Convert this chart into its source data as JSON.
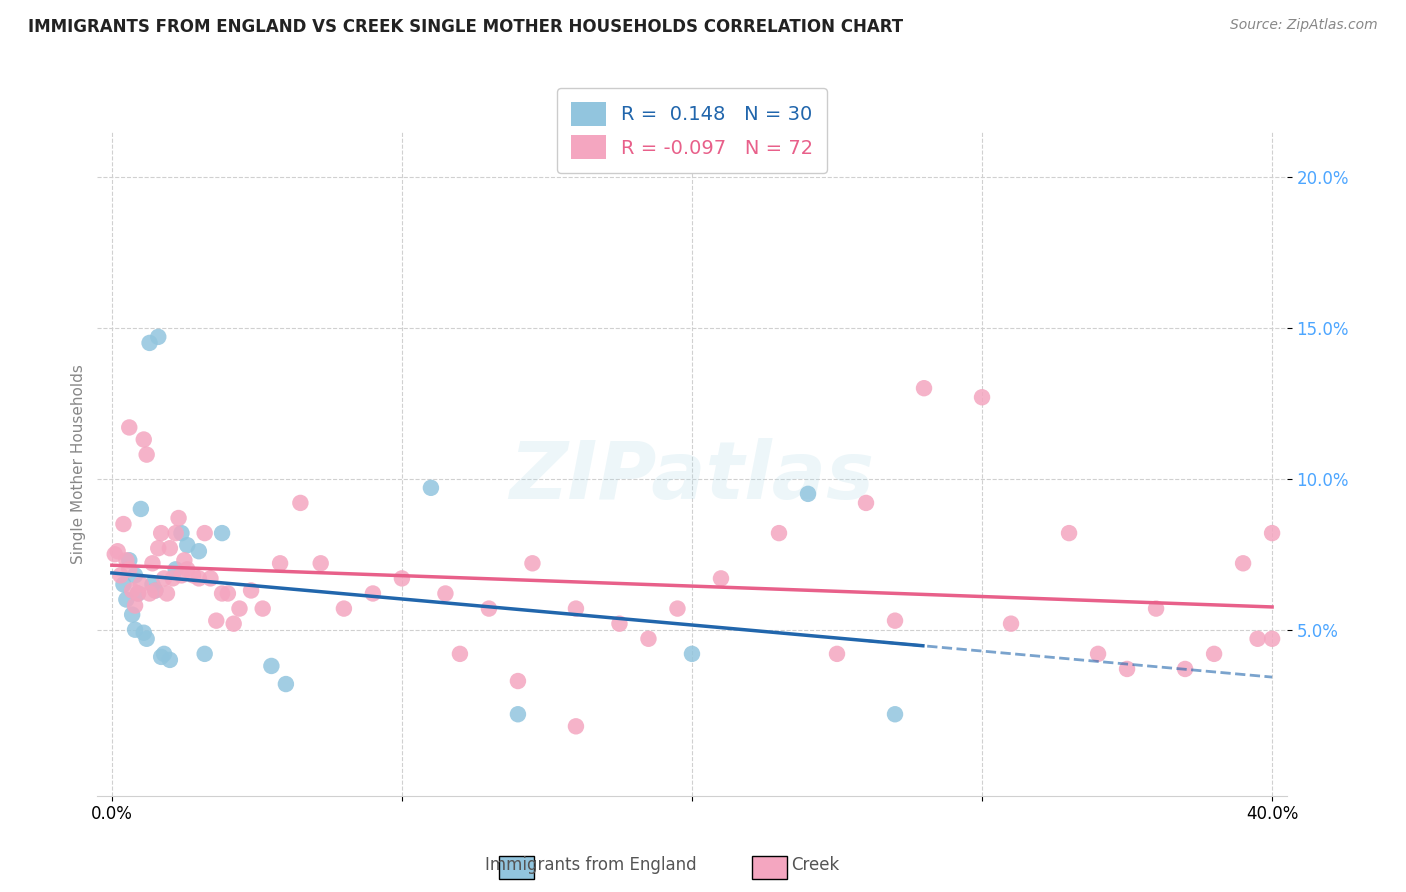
{
  "title": "IMMIGRANTS FROM ENGLAND VS CREEK SINGLE MOTHER HOUSEHOLDS CORRELATION CHART",
  "source": "Source: ZipAtlas.com",
  "ylabel": "Single Mother Households",
  "legend_england": {
    "R": 0.148,
    "N": 30,
    "label": "Immigrants from England"
  },
  "legend_creek": {
    "R": -0.097,
    "N": 72,
    "label": "Creek"
  },
  "color_england": "#92c5de",
  "color_creek": "#f4a6c0",
  "color_england_line": "#2166ac",
  "color_creek_line": "#e8608a",
  "watermark": "ZIPatlas",
  "xlim": [
    0.0,
    0.4
  ],
  "ylim": [
    -0.005,
    0.215
  ],
  "yticks": [
    0.05,
    0.1,
    0.15,
    0.2
  ],
  "ytick_labels": [
    "5.0%",
    "10.0%",
    "15.0%",
    "20.0%"
  ],
  "xticks": [
    0.0,
    0.1,
    0.2,
    0.3,
    0.4
  ],
  "xtick_labels": [
    "0.0%",
    "",
    "",
    "",
    "40.0%"
  ],
  "eng_x": [
    0.004,
    0.005,
    0.006,
    0.007,
    0.008,
    0.008,
    0.009,
    0.01,
    0.011,
    0.012,
    0.013,
    0.014,
    0.015,
    0.016,
    0.017,
    0.018,
    0.02,
    0.022,
    0.024,
    0.026,
    0.03,
    0.032,
    0.038,
    0.055,
    0.06,
    0.11,
    0.14,
    0.2,
    0.24,
    0.27
  ],
  "eng_y": [
    0.065,
    0.06,
    0.073,
    0.055,
    0.068,
    0.05,
    0.062,
    0.09,
    0.049,
    0.047,
    0.145,
    0.065,
    0.063,
    0.147,
    0.041,
    0.042,
    0.04,
    0.07,
    0.082,
    0.078,
    0.076,
    0.042,
    0.082,
    0.038,
    0.032,
    0.097,
    0.022,
    0.042,
    0.095,
    0.022
  ],
  "creek_x": [
    0.001,
    0.002,
    0.003,
    0.004,
    0.005,
    0.006,
    0.006,
    0.007,
    0.008,
    0.009,
    0.01,
    0.011,
    0.012,
    0.013,
    0.014,
    0.015,
    0.016,
    0.017,
    0.018,
    0.019,
    0.02,
    0.021,
    0.022,
    0.023,
    0.024,
    0.025,
    0.026,
    0.028,
    0.03,
    0.032,
    0.034,
    0.036,
    0.038,
    0.04,
    0.042,
    0.044,
    0.048,
    0.052,
    0.058,
    0.065,
    0.072,
    0.08,
    0.09,
    0.1,
    0.115,
    0.13,
    0.145,
    0.16,
    0.175,
    0.195,
    0.21,
    0.23,
    0.26,
    0.28,
    0.3,
    0.31,
    0.33,
    0.34,
    0.36,
    0.37,
    0.38,
    0.39,
    0.4,
    0.12,
    0.14,
    0.16,
    0.185,
    0.25,
    0.27,
    0.35,
    0.395,
    0.4
  ],
  "creek_y": [
    0.075,
    0.076,
    0.068,
    0.085,
    0.073,
    0.07,
    0.117,
    0.063,
    0.058,
    0.062,
    0.065,
    0.113,
    0.108,
    0.062,
    0.072,
    0.063,
    0.077,
    0.082,
    0.067,
    0.062,
    0.077,
    0.067,
    0.082,
    0.087,
    0.068,
    0.073,
    0.07,
    0.068,
    0.067,
    0.082,
    0.067,
    0.053,
    0.062,
    0.062,
    0.052,
    0.057,
    0.063,
    0.057,
    0.072,
    0.092,
    0.072,
    0.057,
    0.062,
    0.067,
    0.062,
    0.057,
    0.072,
    0.057,
    0.052,
    0.057,
    0.067,
    0.082,
    0.092,
    0.13,
    0.127,
    0.052,
    0.082,
    0.042,
    0.057,
    0.037,
    0.042,
    0.072,
    0.047,
    0.042,
    0.033,
    0.018,
    0.047,
    0.042,
    0.053,
    0.037,
    0.047,
    0.082
  ]
}
